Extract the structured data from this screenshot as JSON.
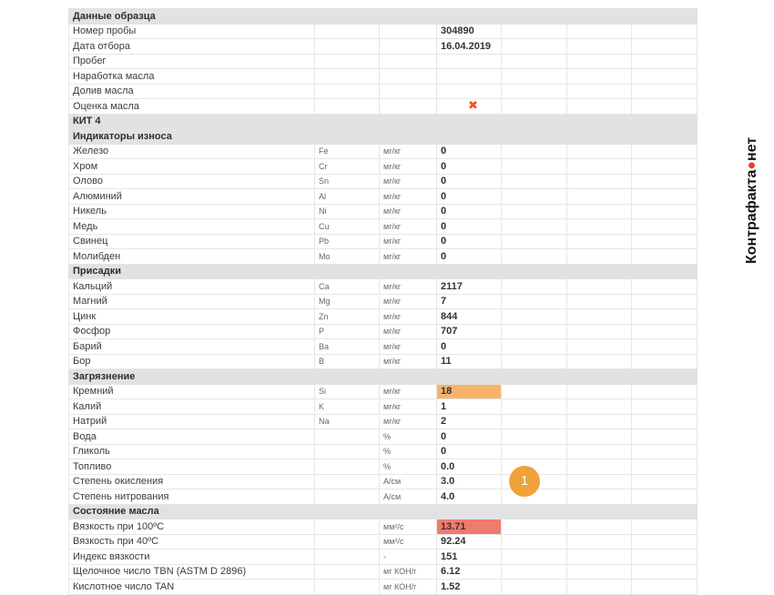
{
  "brand": {
    "left": "Контрафакта",
    "right": "нет",
    "accent": "#e8412c"
  },
  "marker": {
    "label": "1",
    "color": "#f0a23a"
  },
  "rows": [
    {
      "type": "section",
      "label": "Данные образца"
    },
    {
      "label": "Номер пробы",
      "sym": "",
      "unit": "",
      "value": "304890"
    },
    {
      "label": "Дата отбора",
      "sym": "",
      "unit": "",
      "value": "16.04.2019"
    },
    {
      "label": "Пробег",
      "sym": "",
      "unit": "",
      "value": ""
    },
    {
      "label": "Наработка масла",
      "sym": "",
      "unit": "",
      "value": ""
    },
    {
      "label": "Долив масла",
      "sym": "",
      "unit": "",
      "value": ""
    },
    {
      "label": "Оценка масла",
      "sym": "",
      "unit": "",
      "value": "",
      "icon": "x-mark-icon"
    },
    {
      "type": "section",
      "label": "КИТ 4"
    },
    {
      "type": "section",
      "label": "Индикаторы износа"
    },
    {
      "label": "Железо",
      "sym": "Fe",
      "unit": "мг/кг",
      "value": "0"
    },
    {
      "label": "Хром",
      "sym": "Cr",
      "unit": "мг/кг",
      "value": "0"
    },
    {
      "label": "Олово",
      "sym": "Sn",
      "unit": "мг/кг",
      "value": "0"
    },
    {
      "label": "Алюминий",
      "sym": "Al",
      "unit": "мг/кг",
      "value": "0"
    },
    {
      "label": "Никель",
      "sym": "Ni",
      "unit": "мг/кг",
      "value": "0"
    },
    {
      "label": "Медь",
      "sym": "Cu",
      "unit": "мг/кг",
      "value": "0"
    },
    {
      "label": "Свинец",
      "sym": "Pb",
      "unit": "мг/кг",
      "value": "0"
    },
    {
      "label": "Молибден",
      "sym": "Mo",
      "unit": "мг/кг",
      "value": "0"
    },
    {
      "type": "section",
      "label": "Присадки"
    },
    {
      "label": "Кальций",
      "sym": "Ca",
      "unit": "мг/кг",
      "value": "2117"
    },
    {
      "label": "Магний",
      "sym": "Mg",
      "unit": "мг/кг",
      "value": "7"
    },
    {
      "label": "Цинк",
      "sym": "Zn",
      "unit": "мг/кг",
      "value": "844"
    },
    {
      "label": "Фосфор",
      "sym": "P",
      "unit": "мг/кг",
      "value": "707"
    },
    {
      "label": "Барий",
      "sym": "Ba",
      "unit": "мг/кг",
      "value": "0"
    },
    {
      "label": "Бор",
      "sym": "B",
      "unit": "мг/кг",
      "value": "11"
    },
    {
      "type": "section",
      "label": "Загрязнение"
    },
    {
      "label": "Кремний",
      "sym": "Si",
      "unit": "мг/кг",
      "value": "18",
      "status": "warn"
    },
    {
      "label": "Калий",
      "sym": "K",
      "unit": "мг/кг",
      "value": "1"
    },
    {
      "label": "Натрий",
      "sym": "Na",
      "unit": "мг/кг",
      "value": "2"
    },
    {
      "label": "Вода",
      "sym": "",
      "unit": "%",
      "value": "0"
    },
    {
      "label": "Гликоль",
      "sym": "",
      "unit": "%",
      "value": "0"
    },
    {
      "label": "Топливо",
      "sym": "",
      "unit": "%",
      "value": "0.0"
    },
    {
      "label": "Степень окисления",
      "sym": "",
      "unit": "А/см",
      "value": "3.0"
    },
    {
      "label": "Степень нитрования",
      "sym": "",
      "unit": "А/см",
      "value": "4.0"
    },
    {
      "type": "section",
      "label": "Состояние масла"
    },
    {
      "label": "Вязкость при 100ºC",
      "sym": "",
      "unit": "мм²/с",
      "value": "13.71",
      "status": "crit"
    },
    {
      "label": "Вязкость при 40ºC",
      "sym": "",
      "unit": "мм²/с",
      "value": "92.24"
    },
    {
      "label": "Индекс вязкости",
      "sym": "",
      "unit": "-",
      "value": "151"
    },
    {
      "label": "Щелочное число TBN (ASTM D 2896)",
      "sym": "",
      "unit": "мг КОН/г",
      "value": "6.12"
    },
    {
      "label": "Кислотное число TAN",
      "sym": "",
      "unit": "мг КОН/г",
      "value": "1.52"
    }
  ]
}
